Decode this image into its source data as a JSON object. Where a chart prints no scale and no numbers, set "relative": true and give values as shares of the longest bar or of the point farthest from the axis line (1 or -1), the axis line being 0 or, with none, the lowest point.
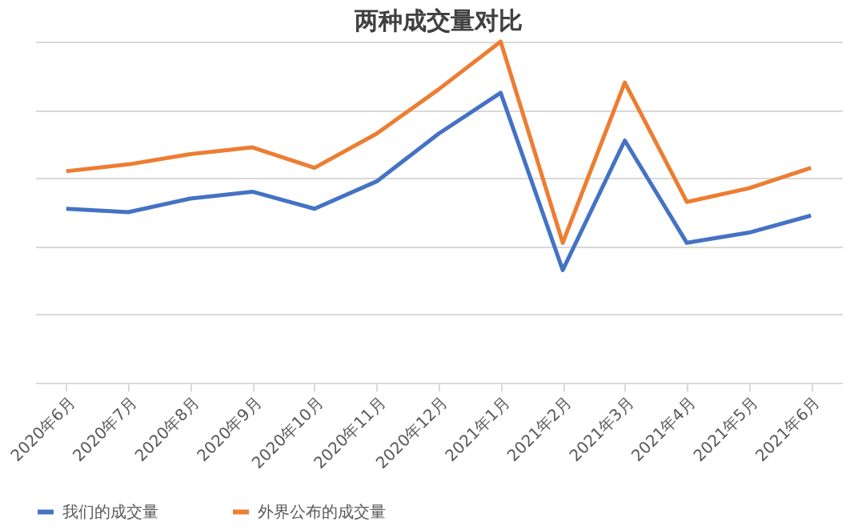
{
  "chart_data": {
    "type": "line",
    "title": "两种成交量对比",
    "relative": true,
    "grid": "y",
    "legend": "bottom",
    "tick_labels": "x",
    "categories": [
      "2020年6月",
      "2020年7月",
      "2020年8月",
      "2020年9月",
      "2020年10月",
      "2020年11月",
      "2020年12月",
      "2021年1月",
      "2021年2月",
      "2021年3月",
      "2021年4月",
      "2021年5月",
      "2021年6月"
    ],
    "series": [
      {
        "name": "我们的成交量",
        "color": "#4472c4",
        "values": [
          0.51,
          0.5,
          0.54,
          0.56,
          0.51,
          0.59,
          0.73,
          0.85,
          0.33,
          0.71,
          0.41,
          0.44,
          0.49
        ]
      },
      {
        "name": "外界公布的成交量",
        "color": "#ed7d31",
        "values": [
          0.62,
          0.64,
          0.67,
          0.69,
          0.63,
          0.73,
          0.86,
          1,
          0.41,
          0.88,
          0.53,
          0.57,
          0.63
        ]
      }
    ]
  }
}
